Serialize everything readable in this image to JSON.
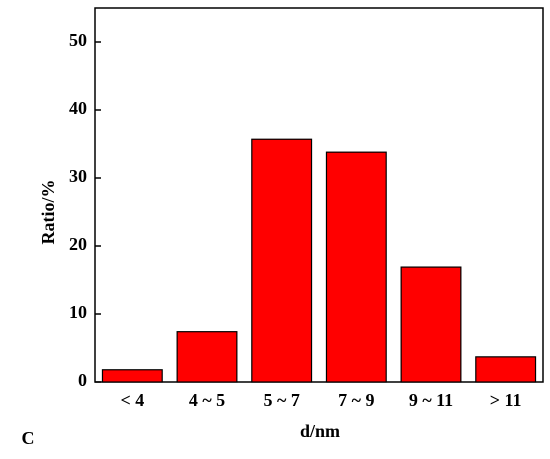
{
  "chart_data": {
    "type": "bar",
    "categories": [
      "< 4",
      "4 ~ 5",
      "5 ~ 7",
      "7 ~ 9",
      "9 ~ 11",
      "> 11"
    ],
    "values": [
      1.8,
      7.4,
      35.7,
      33.8,
      16.9,
      3.7
    ],
    "color": "#ff0000",
    "ylim": [
      0,
      55
    ],
    "yticks": [
      0,
      10,
      20,
      30,
      40,
      50
    ],
    "x_label": "d/nm",
    "y_label": "Ratio/%",
    "panel_label": "C"
  }
}
